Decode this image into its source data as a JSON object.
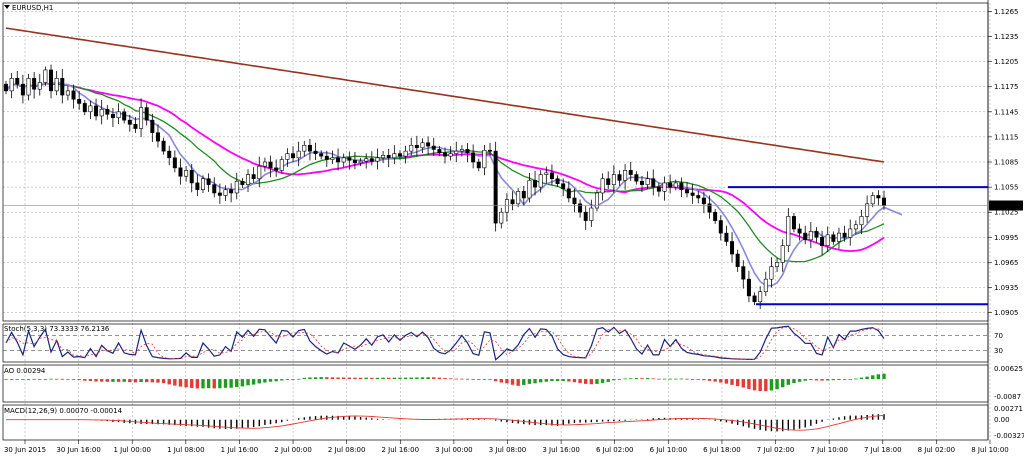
{
  "title": "EURUSD,H1",
  "chart_data": {
    "type": "candlestick",
    "symbol": "EURUSD",
    "timeframe": "H1",
    "current_price": "1.1033",
    "price_axis": [
      "1.1265",
      "1.1235",
      "1.1205",
      "1.1175",
      "1.1145",
      "1.1115",
      "1.1085",
      "1.1055",
      "1.1025",
      "1.0995",
      "1.0965",
      "1.0935",
      "1.0905"
    ],
    "ylim": [
      1.0895,
      1.1275
    ],
    "time_axis": [
      "30 Jun 2015",
      "30 Jun 16:00",
      "1 Jul 00:00",
      "1 Jul 08:00",
      "1 Jul 16:00",
      "2 Jul 00:00",
      "2 Jul 08:00",
      "2 Jul 16:00",
      "3 Jul 00:00",
      "3 Jul 08:00",
      "3 Jul 16:00",
      "6 Jul 02:00",
      "6 Jul 10:00",
      "6 Jul 18:00",
      "7 Jul 02:00",
      "7 Jul 10:00",
      "7 Jul 18:00",
      "8 Jul 02:00",
      "8 Jul 10:00"
    ],
    "closes": [
      1.117,
      1.1185,
      1.1178,
      1.1165,
      1.1185,
      1.1172,
      1.118,
      1.1195,
      1.117,
      1.1185,
      1.1165,
      1.117,
      1.116,
      1.1155,
      1.1145,
      1.1152,
      1.114,
      1.1148,
      1.1142,
      1.1138,
      1.1145,
      1.1135,
      1.113,
      1.1125,
      1.115,
      1.1135,
      1.112,
      1.111,
      1.1098,
      1.109,
      1.1078,
      1.1068,
      1.1075,
      1.106,
      1.1052,
      1.1065,
      1.1058,
      1.1048,
      1.1045,
      1.1052,
      1.1048,
      1.1062,
      1.1058,
      1.107,
      1.1065,
      1.108,
      1.1085,
      1.1078,
      1.1075,
      1.1088,
      1.1095,
      1.109,
      1.1098,
      1.1105,
      1.1098,
      1.1095,
      1.1092,
      1.1088,
      1.109,
      1.1085,
      1.109,
      1.1087,
      1.1084,
      1.1086,
      1.1089,
      1.1086,
      1.109,
      1.1093,
      1.109,
      1.1095,
      1.1092,
      1.1098,
      1.1105,
      1.1102,
      1.1108,
      1.1104,
      1.11,
      1.1096,
      1.1092,
      1.1095,
      1.1098,
      1.11,
      1.1096,
      1.1085,
      1.1078,
      1.1099,
      1.1098,
      1.1012,
      1.1025,
      1.104,
      1.1035,
      1.105,
      1.1042,
      1.1063,
      1.1055,
      1.107,
      1.1072,
      1.1065,
      1.1059,
      1.1053,
      1.1042,
      1.1035,
      1.1025,
      1.1015,
      1.103,
      1.1048,
      1.1065,
      1.1058,
      1.107,
      1.1063,
      1.1075,
      1.107,
      1.1062,
      1.1058,
      1.1065,
      1.1055,
      1.105,
      1.106,
      1.1055,
      1.106,
      1.1052,
      1.1048,
      1.1045,
      1.1042,
      1.1035,
      1.1025,
      1.1015,
      1.1,
      1.099,
      1.0975,
      1.096,
      1.0945,
      1.0925,
      1.0918,
      1.093,
      1.0945,
      1.096,
      1.0965,
      1.0985,
      1.102,
      1.1005,
      1.1,
      1.0992,
      1.1002,
      1.0995,
      1.0985,
      1.0998,
      1.099,
      1.1,
      1.0995,
      1.1005,
      1.101,
      1.102,
      1.1035,
      1.1045,
      1.1042,
      1.1033
    ],
    "horizontal_lines": [
      1.1055,
      1.0915
    ],
    "moving_averages": [
      "#993322",
      "#ff00ff",
      "#228b22",
      "#8888dd"
    ],
    "indicators": [
      {
        "name": "Stoch(5,3,3)",
        "values": "73.3333 76.2136",
        "levels": [
          "70",
          "30"
        ]
      },
      {
        "name": "AO",
        "values": "0.00294",
        "axis": [
          "0.00625",
          "-0.0087"
        ]
      },
      {
        "name": "MACD(12,26,9)",
        "values": "0.00070 -0.00014",
        "axis": [
          "0.00271",
          "0.00",
          "-0.00327"
        ]
      }
    ]
  }
}
